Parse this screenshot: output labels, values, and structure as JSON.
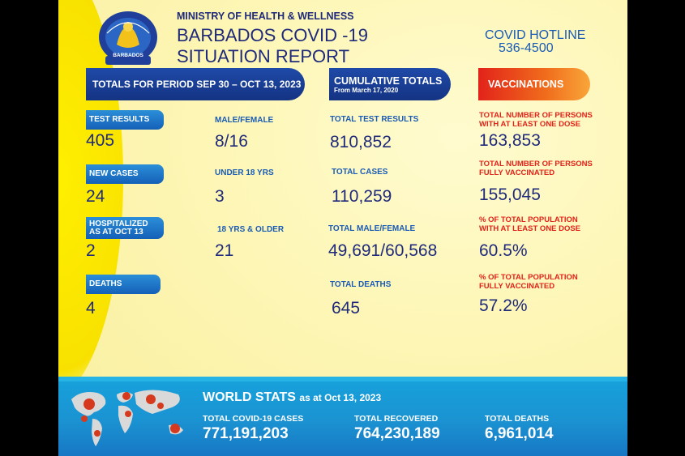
{
  "header": {
    "ministry": "MINISTRY OF HEALTH & WELLNESS",
    "title_line1": "BARBADOS COVID -19",
    "title_line2": "SITUATION REPORT",
    "logo_text": "BARBADOS",
    "hotline_label": "COVID HOTLINE",
    "hotline_number": "536-4500"
  },
  "period": {
    "banner": "TOTALS FOR PERIOD SEP 30 – OCT 13, 2023",
    "test_results_label": "TEST RESULTS",
    "test_results": "405",
    "new_cases_label": "NEW CASES",
    "new_cases": "24",
    "hospitalized_label_1": "HOSPITALIZED",
    "hospitalized_label_2": "AS AT OCT 13",
    "hospitalized": "2",
    "deaths_label": "DEATHS",
    "deaths": "4",
    "male_female_label": "MALE/FEMALE",
    "male_female": "8/16",
    "under18_label": "UNDER 18 YRS",
    "under18": "3",
    "over18_label": "18 YRS & OLDER",
    "over18": "21"
  },
  "cumulative": {
    "banner": "CUMULATIVE TOTALS",
    "banner_sub": "From March 17, 2020",
    "test_results_label": "TOTAL TEST RESULTS",
    "test_results": "810,852",
    "cases_label": "TOTAL CASES",
    "cases": "110,259",
    "male_female_label": "TOTAL MALE/FEMALE",
    "male_female": "49,691/60,568",
    "deaths_label": "TOTAL DEATHS",
    "deaths": "645"
  },
  "vaccinations": {
    "banner": "VACCINATIONS",
    "one_dose_label_1": "TOTAL NUMBER OF PERSONS",
    "one_dose_label_2": "WITH AT LEAST ONE DOSE",
    "one_dose": "163,853",
    "fully_label_1": "TOTAL NUMBER OF PERSONS",
    "fully_label_2": "FULLY VACCINATED",
    "fully": "155,045",
    "pct_one_dose_label_1": "% OF TOTAL POPULATION",
    "pct_one_dose_label_2": "WITH AT LEAST ONE DOSE",
    "pct_one_dose": "60.5%",
    "pct_fully_label_1": "% OF TOTAL POPULATION",
    "pct_fully_label_2": "FULLY VACCINATED",
    "pct_fully": "57.2%"
  },
  "world": {
    "title": "WORLD STATS",
    "subtitle": "as at Oct 13, 2023",
    "cases_label": "TOTAL COVID-19 CASES",
    "cases": "771,191,203",
    "recovered_label": "TOTAL RECOVERED",
    "recovered": "764,230,189",
    "deaths_label": "TOTAL DEATHS",
    "deaths": "6,961,014"
  },
  "colors": {
    "navy": "#1f2a7a",
    "blue": "#1a5bb5",
    "red": "#e2231a",
    "background": "#fdf6b5",
    "world_band": "#1b93d2"
  },
  "icons": [
    "ministry-logo-icon",
    "world-map-icon",
    "virus-icon"
  ]
}
